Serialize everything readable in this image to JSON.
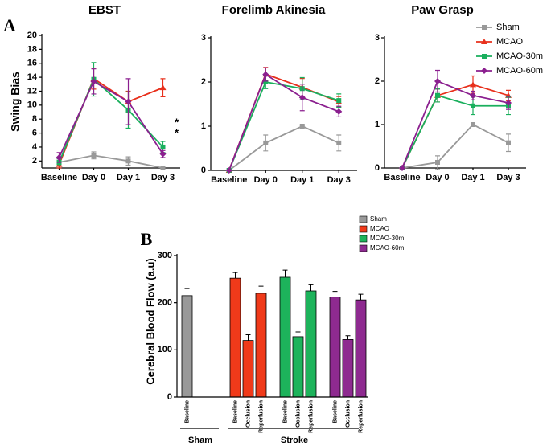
{
  "chart_data": [
    {
      "type": "line",
      "panel": "A",
      "title": "EBST",
      "y_label": "Swing Bias",
      "categories": [
        "Baseline",
        "Day 0",
        "Day 1",
        "Day 3"
      ],
      "ylim": [
        1,
        20
      ],
      "yticks": [
        2,
        4,
        6,
        8,
        10,
        12,
        14,
        16,
        18,
        20
      ],
      "legend": false,
      "annotations": [
        "*",
        "*"
      ],
      "series": [
        {
          "name": "Sham",
          "color": "#999999",
          "marker": "square",
          "values": [
            1.8,
            2.8,
            2.0,
            1.0
          ],
          "errors": [
            0.3,
            0.5,
            0.6,
            0.2
          ]
        },
        {
          "name": "MCAO",
          "color": "#e8301c",
          "marker": "triangle",
          "values": [
            1.5,
            13.8,
            10.5,
            12.5
          ],
          "errors": [
            0.5,
            1.5,
            1.5,
            1.3
          ]
        },
        {
          "name": "MCAO-30m",
          "color": "#1aaf5d",
          "marker": "square",
          "values": [
            1.8,
            13.7,
            9.3,
            4.0
          ],
          "errors": [
            0.5,
            2.4,
            2.6,
            0.8
          ]
        },
        {
          "name": "MCAO-60m",
          "color": "#8b1f8f",
          "marker": "diamond",
          "values": [
            2.5,
            13.4,
            10.5,
            3.0
          ],
          "errors": [
            0.7,
            1.8,
            3.3,
            0.5
          ]
        }
      ]
    },
    {
      "type": "line",
      "title": "Forelimb Akinesia",
      "categories": [
        "Baseline",
        "Day 0",
        "Day 1",
        "Day 3"
      ],
      "ylim": [
        0,
        3
      ],
      "yticks": [
        0,
        1,
        2,
        3
      ],
      "legend": false,
      "series": [
        {
          "name": "Sham",
          "color": "#999999",
          "marker": "square",
          "values": [
            0,
            0.62,
            1.0,
            0.62
          ],
          "errors": [
            0,
            0.18,
            0.02,
            0.18
          ]
        },
        {
          "name": "MCAO",
          "color": "#e8301c",
          "marker": "triangle",
          "values": [
            0,
            2.18,
            1.88,
            1.55
          ],
          "errors": [
            0,
            0.15,
            0.2,
            0.12
          ]
        },
        {
          "name": "MCAO-30m",
          "color": "#1aaf5d",
          "marker": "square",
          "values": [
            0,
            2.0,
            1.85,
            1.58
          ],
          "errors": [
            0,
            0.15,
            0.25,
            0.15
          ]
        },
        {
          "name": "MCAO-60m",
          "color": "#8b1f8f",
          "marker": "diamond",
          "values": [
            0,
            2.17,
            1.65,
            1.33
          ],
          "errors": [
            0,
            0.15,
            0.3,
            0.12
          ]
        }
      ]
    },
    {
      "type": "line",
      "title": "Paw Grasp",
      "categories": [
        "Baseline",
        "Day 0",
        "Day 1",
        "Day 3"
      ],
      "ylim": [
        0,
        3
      ],
      "yticks": [
        0,
        1,
        2,
        3
      ],
      "legend": "right",
      "series": [
        {
          "name": "Sham",
          "color": "#999999",
          "marker": "square",
          "values": [
            0,
            0.13,
            1.0,
            0.58
          ],
          "errors": [
            0,
            0.15,
            0.02,
            0.2
          ]
        },
        {
          "name": "MCAO",
          "color": "#e8301c",
          "marker": "triangle",
          "values": [
            0,
            1.67,
            1.92,
            1.67
          ],
          "errors": [
            0,
            0.15,
            0.2,
            0.12
          ]
        },
        {
          "name": "MCAO-30m",
          "color": "#1aaf5d",
          "marker": "square",
          "values": [
            0,
            1.67,
            1.43,
            1.43
          ],
          "errors": [
            0,
            0.15,
            0.2,
            0.2
          ]
        },
        {
          "name": "MCAO-60m",
          "color": "#8b1f8f",
          "marker": "diamond",
          "values": [
            0,
            2.0,
            1.67,
            1.5
          ],
          "errors": [
            0,
            0.25,
            0.1,
            0.15
          ]
        }
      ]
    },
    {
      "type": "bar",
      "panel": "B",
      "y_label": "Cerebral Blood Flow (a.u)",
      "categories": [
        "Baseline",
        "Occlusion",
        "Reperfusion"
      ],
      "ylim": [
        0,
        300
      ],
      "yticks": [
        0,
        100,
        200,
        300
      ],
      "legend": "top-right",
      "groups": [
        {
          "label": "Sham",
          "series": [
            {
              "name": "Sham",
              "color": "#999999",
              "values": [
                215
              ],
              "errors": [
                15
              ]
            }
          ]
        },
        {
          "label": "Stroke",
          "series": [
            {
              "name": "MCAO",
              "color": "#f03a1a",
              "values": [
                252,
                120,
                220
              ],
              "errors": [
                12,
                12,
                15
              ]
            },
            {
              "name": "MCAO-30m",
              "color": "#1db35b",
              "values": [
                254,
                128,
                225
              ],
              "errors": [
                15,
                10,
                13
              ]
            },
            {
              "name": "MCAO-60m",
              "color": "#8e2a90",
              "values": [
                212,
                122,
                206
              ],
              "errors": [
                12,
                8,
                12
              ]
            }
          ]
        }
      ]
    }
  ]
}
